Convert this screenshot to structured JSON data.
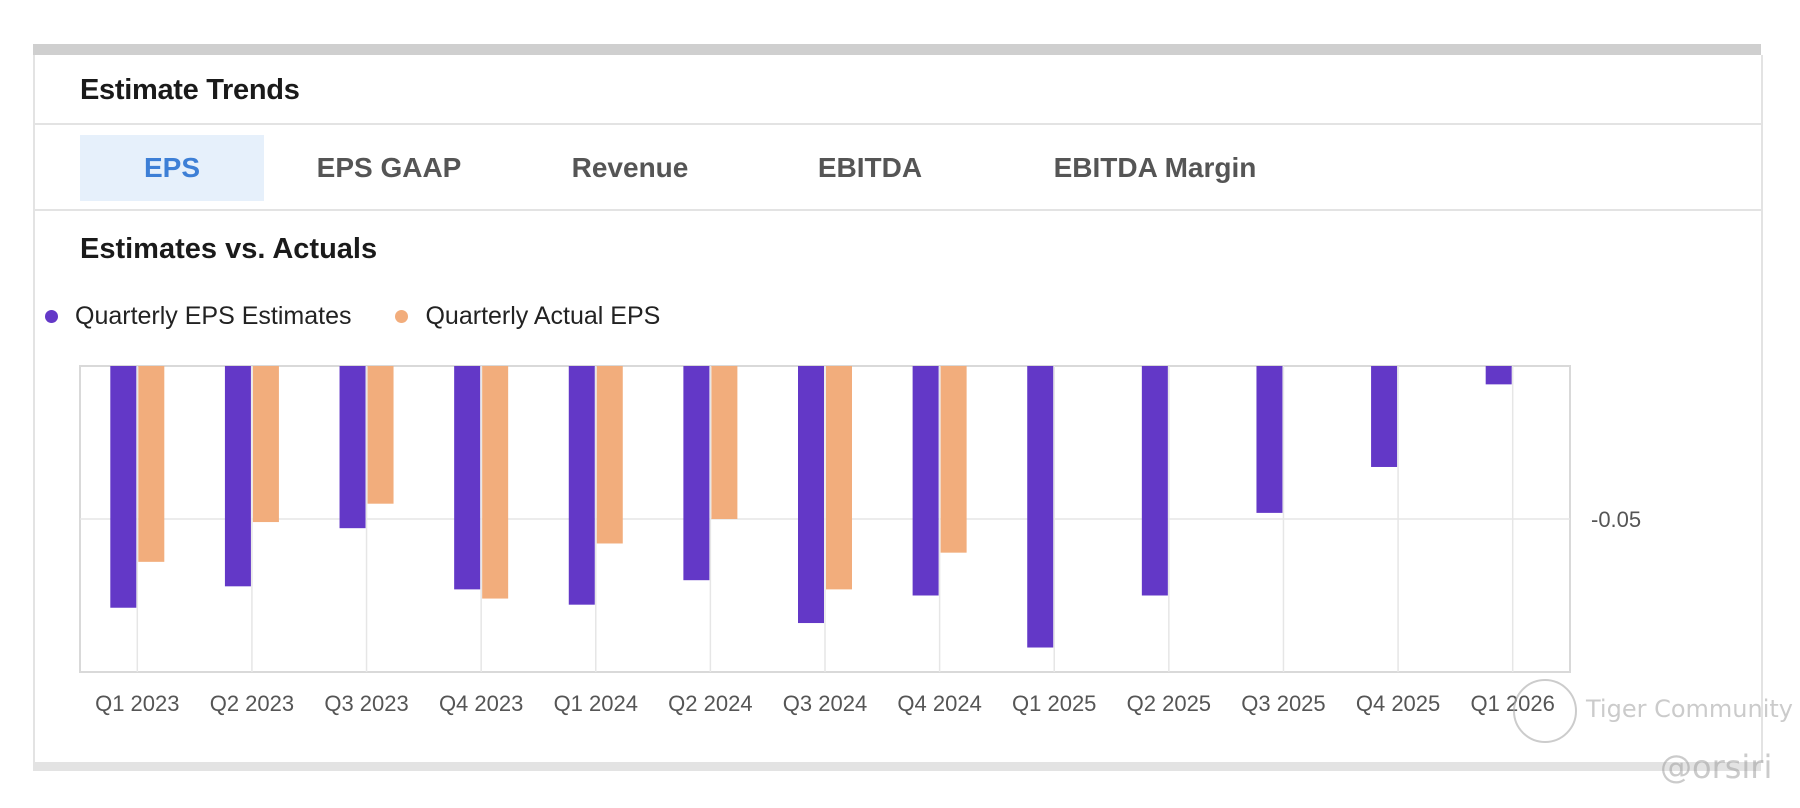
{
  "card": {
    "title": "Estimate Trends"
  },
  "tabs": [
    {
      "label": "EPS",
      "active": true
    },
    {
      "label": "EPS GAAP",
      "active": false
    },
    {
      "label": "Revenue",
      "active": false
    },
    {
      "label": "EBITDA",
      "active": false
    },
    {
      "label": "EBITDA Margin",
      "active": false
    }
  ],
  "section": {
    "title": "Estimates vs. Actuals"
  },
  "legend": [
    {
      "label": "Quarterly EPS Estimates",
      "color": "#6338c7"
    },
    {
      "label": "Quarterly Actual EPS",
      "color": "#f2ad7c"
    }
  ],
  "chart_data": {
    "type": "bar",
    "title": "Estimates vs. Actuals",
    "xlabel": "",
    "ylabel": "",
    "categories": [
      "Q1 2023",
      "Q2 2023",
      "Q3 2023",
      "Q4 2023",
      "Q1 2024",
      "Q2 2024",
      "Q3 2024",
      "Q4 2024",
      "Q1 2025",
      "Q2 2025",
      "Q3 2025",
      "Q4 2025",
      "Q1 2026"
    ],
    "series": [
      {
        "name": "Quarterly EPS Estimates",
        "color": "#6338c7",
        "values": [
          -0.079,
          -0.072,
          -0.053,
          -0.073,
          -0.078,
          -0.07,
          -0.084,
          -0.075,
          -0.092,
          -0.075,
          -0.048,
          -0.033,
          -0.006
        ]
      },
      {
        "name": "Quarterly Actual EPS",
        "color": "#f2ad7c",
        "values": [
          -0.064,
          -0.051,
          -0.045,
          -0.076,
          -0.058,
          -0.05,
          -0.073,
          -0.061,
          null,
          null,
          null,
          null,
          null
        ]
      }
    ],
    "ylim": [
      -0.1,
      0
    ],
    "yticks": [
      -0.05
    ],
    "ytick_labels": [
      "-0.05"
    ],
    "grid": true,
    "legend": "top-left"
  },
  "watermark": {
    "brand": "Tiger Community",
    "handle": "@orsiri"
  }
}
